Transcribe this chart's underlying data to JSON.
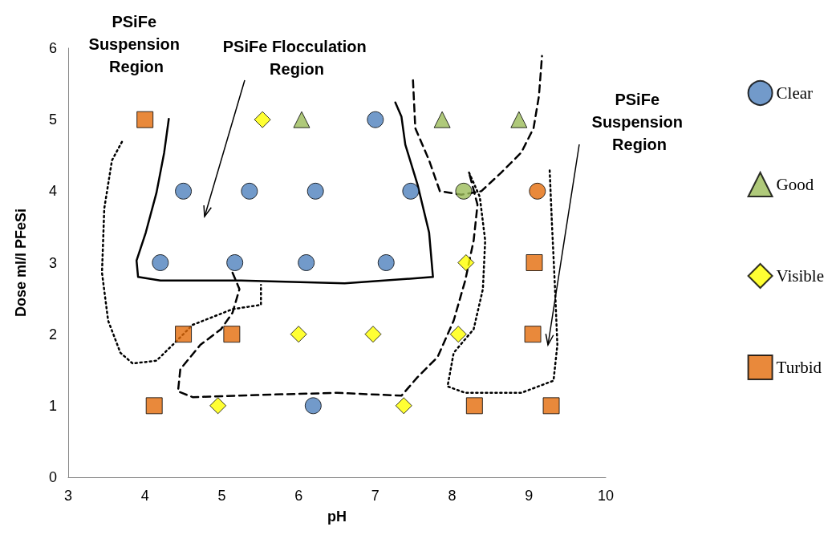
{
  "chart_data": {
    "type": "scatter",
    "xlabel": "pH",
    "ylabel": "Dose ml/l PFeSi",
    "xlim": [
      3,
      10
    ],
    "ylim": [
      0,
      6
    ],
    "xticks": [
      3,
      4,
      5,
      6,
      7,
      8,
      9,
      10
    ],
    "yticks": [
      0,
      1,
      2,
      3,
      4,
      5,
      6
    ],
    "grid": false,
    "legend": "right",
    "annotations": [
      "PSiFe Suspension Region",
      "PSiFe Flocculation Region",
      "PSiFe Suspension Region"
    ],
    "series": [
      {
        "name": "Clear",
        "marker": "circle",
        "color": "#4f81bd",
        "x": [
          4.2,
          5.17,
          6.1,
          7.14,
          4.5,
          5.36,
          6.22,
          7.46,
          7.0,
          6.19
        ],
        "values": [
          3,
          3,
          3,
          3,
          4,
          4,
          4,
          4,
          5,
          1
        ]
      },
      {
        "name": "Good",
        "marker": "triangle",
        "color": "#9bbb59",
        "x": [
          6.04,
          7.87,
          8.87
        ],
        "values": [
          5,
          5,
          5
        ]
      },
      {
        "name": "Visible",
        "marker": "diamond",
        "color": "#ffff00",
        "x": [
          5.53,
          8.18,
          6.0,
          6.97,
          8.08,
          4.95,
          7.37
        ],
        "values": [
          5,
          3,
          2,
          2,
          2,
          1,
          1
        ]
      },
      {
        "name": "Turbid",
        "marker": "square",
        "color": "#e46c0a",
        "x": [
          4.0,
          9.07,
          4.5,
          5.13,
          9.05,
          4.12,
          8.29,
          9.29
        ],
        "values": [
          5,
          3,
          2,
          2,
          2,
          1,
          1,
          1
        ]
      },
      {
        "marker": "circle",
        "color": "#9bbb59",
        "x": [
          8.15
        ],
        "values": [
          4
        ]
      },
      {
        "marker": "circle",
        "color": "#e46c0a",
        "x": [
          9.11
        ],
        "values": [
          4
        ]
      },
      {
        "type": "line",
        "line_style": "solid",
        "color": "#000000",
        "x": [
          4.31,
          4.25,
          4.15,
          4.01,
          3.89,
          3.91,
          4.2,
          5.25,
          6.6,
          7.75,
          7.7,
          7.55,
          7.39,
          7.34,
          7.26
        ],
        "values": [
          5.01,
          4.54,
          3.98,
          3.42,
          3.03,
          2.8,
          2.75,
          2.75,
          2.71,
          2.8,
          3.42,
          4.09,
          4.65,
          5.04,
          5.24
        ]
      },
      {
        "type": "line",
        "line_style": "dashed",
        "color": "#000000",
        "x": [
          7.49,
          7.52,
          7.7,
          7.84,
          8.12,
          8.38,
          8.64,
          8.9,
          9.06,
          9.13,
          9.17
        ],
        "values": [
          5.55,
          4.88,
          4.43,
          4.0,
          3.95,
          4.0,
          4.26,
          4.54,
          4.88,
          5.33,
          5.89
        ]
      },
      {
        "type": "line",
        "line_style": "dotted",
        "color": "#000000",
        "x": [
          3.7,
          3.57,
          3.47,
          3.44,
          3.52,
          3.68,
          3.84,
          4.15,
          4.36,
          4.62,
          5.14,
          5.51,
          5.51
        ],
        "values": [
          4.69,
          4.43,
          3.76,
          2.86,
          2.19,
          1.74,
          1.59,
          1.63,
          1.85,
          2.13,
          2.35,
          2.41,
          2.69
        ]
      },
      {
        "type": "line",
        "line_style": "dashed",
        "color": "#000000",
        "x": [
          5.14,
          5.23,
          5.14,
          4.99,
          4.72,
          4.46,
          4.43,
          4.62,
          5.46,
          6.5,
          7.34,
          7.55,
          7.81,
          8.02,
          8.17,
          8.28,
          8.33,
          8.22
        ],
        "values": [
          2.86,
          2.63,
          2.3,
          2.07,
          1.85,
          1.51,
          1.2,
          1.12,
          1.15,
          1.18,
          1.14,
          1.4,
          1.68,
          2.19,
          2.75,
          3.31,
          3.81,
          4.26
        ]
      },
      {
        "type": "line",
        "line_style": "dotted",
        "color": "#000000",
        "x": [
          8.22,
          8.36,
          8.43,
          8.4,
          8.28,
          8.02,
          7.94,
          8.17,
          8.9,
          9.32,
          9.37,
          9.34,
          9.3,
          9.27
        ],
        "values": [
          4.26,
          3.92,
          3.31,
          2.63,
          2.07,
          1.74,
          1.27,
          1.18,
          1.18,
          1.35,
          1.85,
          2.63,
          3.53,
          4.29
        ]
      }
    ]
  }
}
